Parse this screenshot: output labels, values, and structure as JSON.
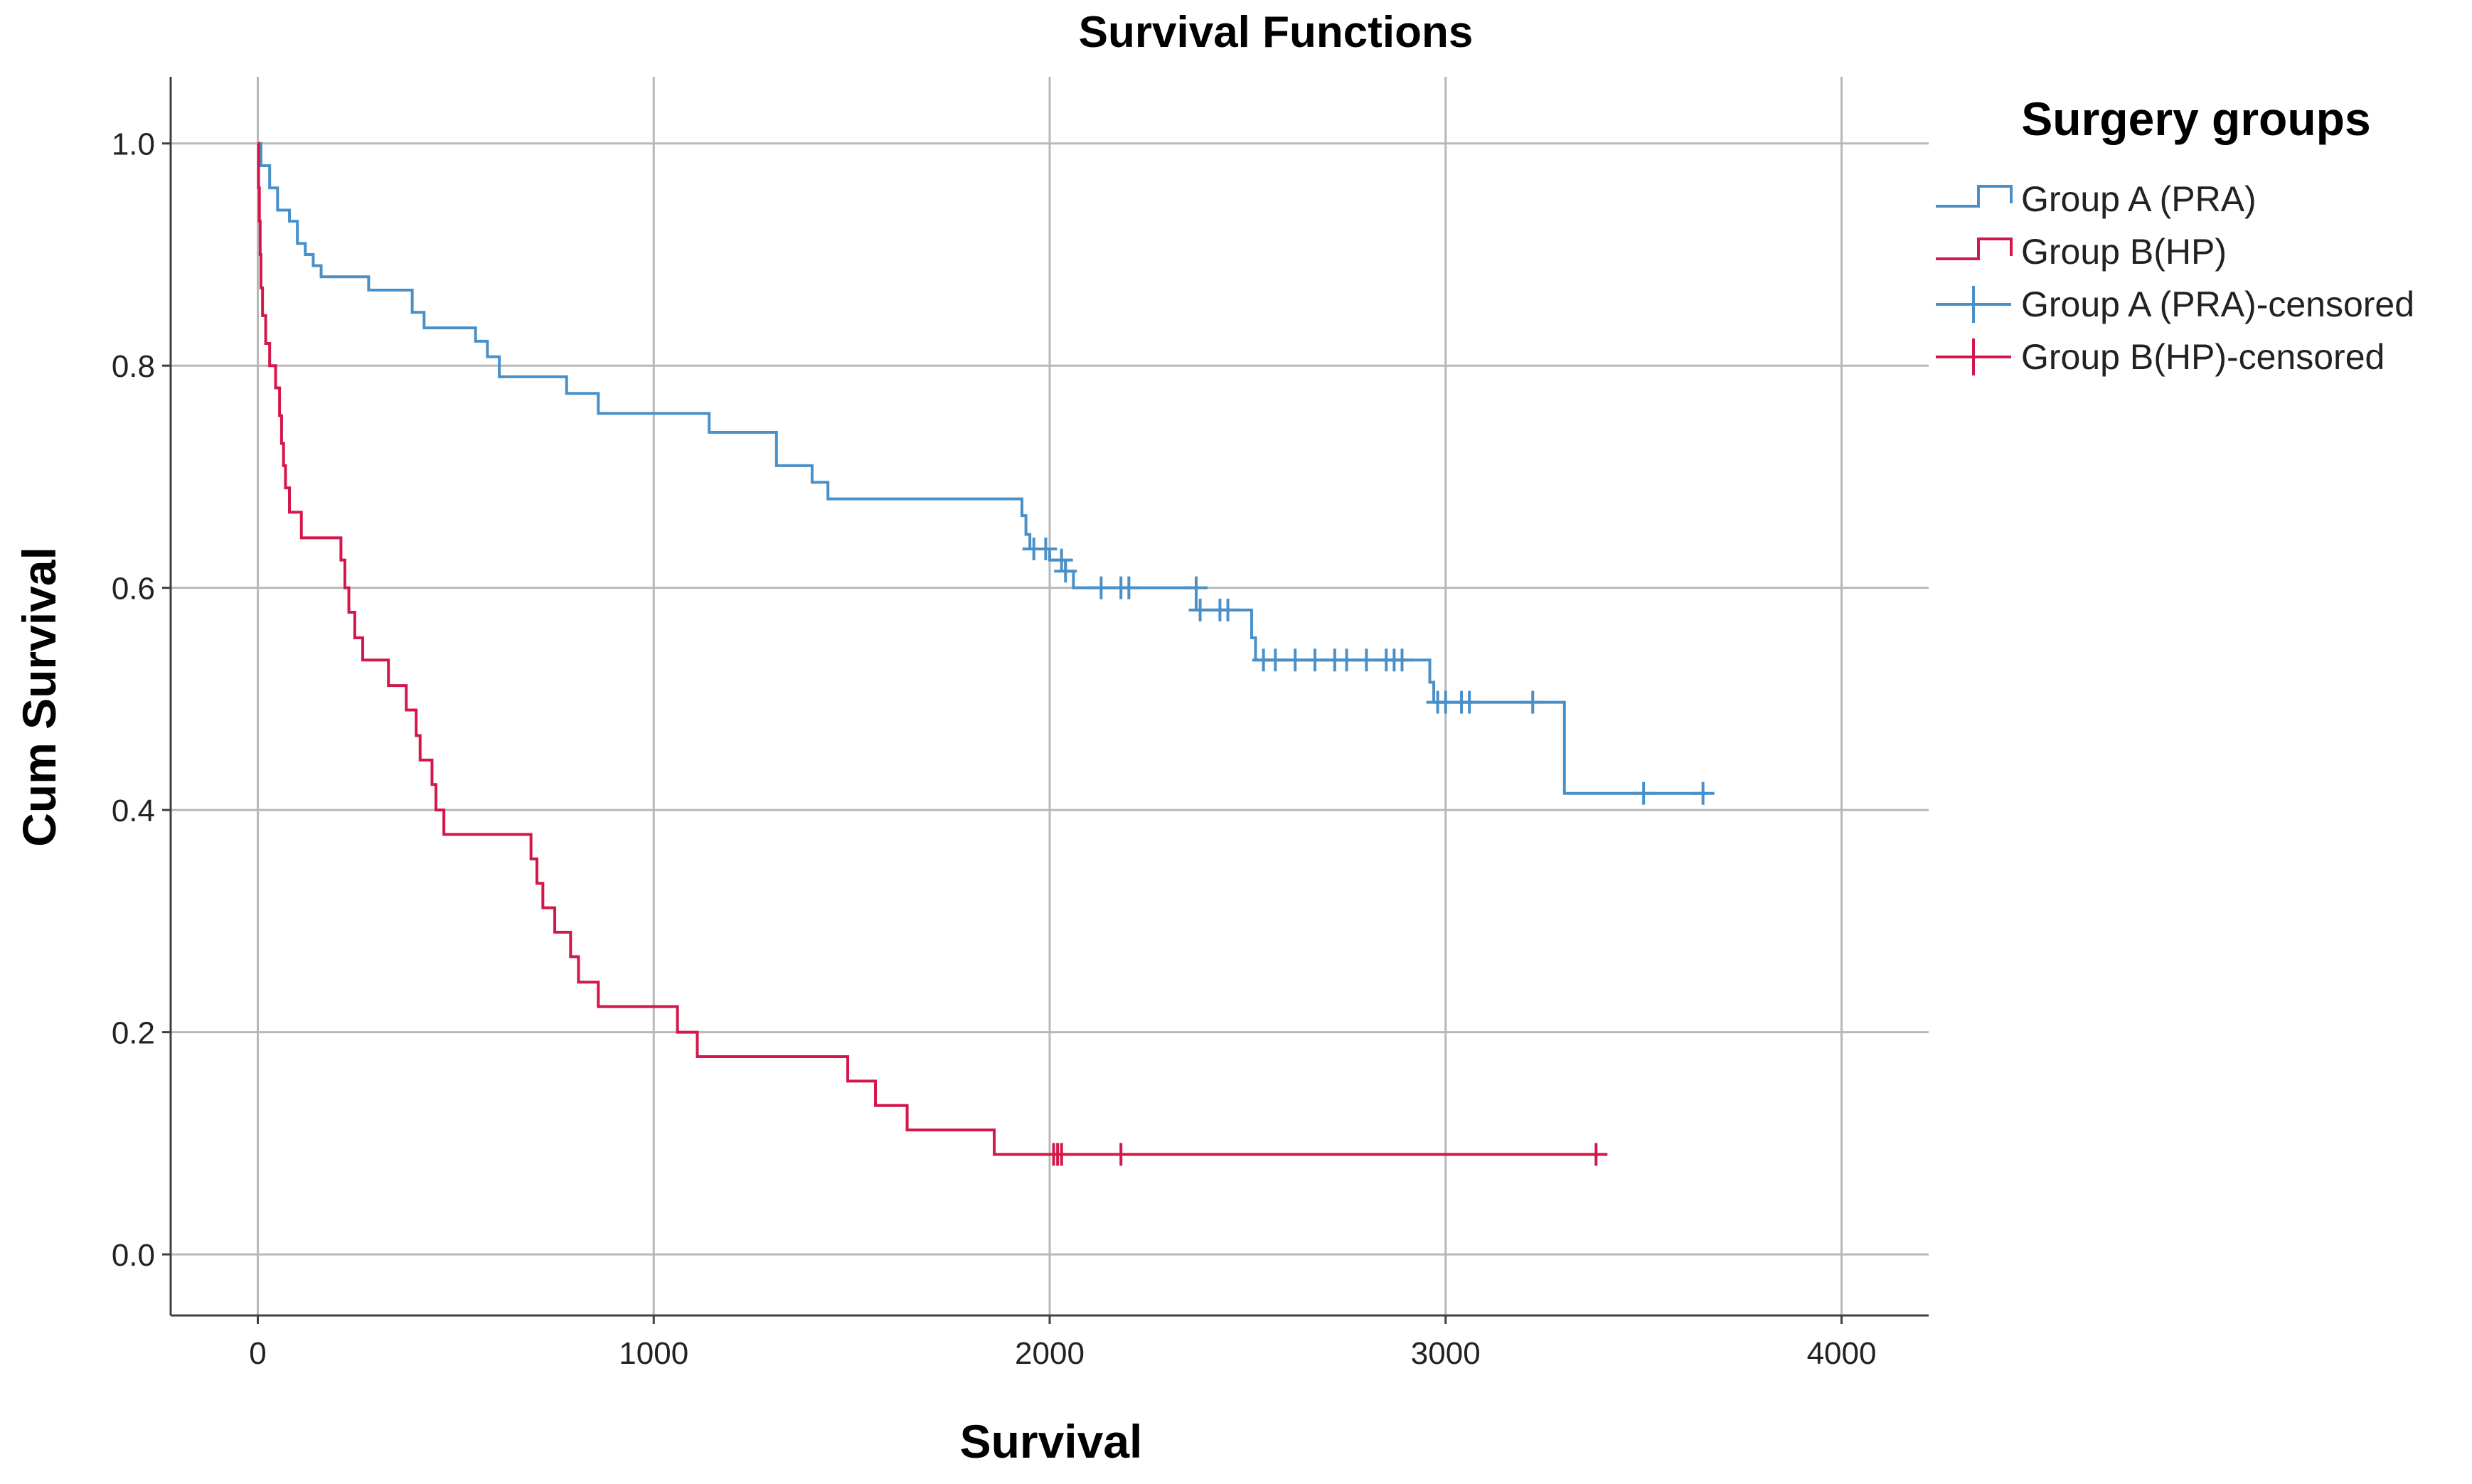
{
  "chart_data": {
    "type": "line",
    "title": "Survival Functions",
    "xlabel": "Survival",
    "ylabel": "Cum Survival",
    "xlim": [
      -220,
      4220
    ],
    "ylim": [
      -0.055,
      1.06
    ],
    "xticks": [
      0,
      1000,
      2000,
      3000,
      4000
    ],
    "yticks": [
      0.0,
      0.2,
      0.4,
      0.6,
      0.8,
      1.0
    ],
    "xtick_labels": [
      "0",
      "1000",
      "2000",
      "3000",
      "4000"
    ],
    "ytick_labels": [
      "0.0",
      "0.2",
      "0.4",
      "0.6",
      "0.8",
      "1.0"
    ],
    "grid": true,
    "legend": {
      "title": "Surgery groups",
      "position": "right",
      "entries": [
        {
          "label": "Group A (PRA)",
          "series": "A",
          "kind": "step"
        },
        {
          "label": "Group B(HP)",
          "series": "B",
          "kind": "step"
        },
        {
          "label": "Group A (PRA)-censored",
          "series": "A",
          "kind": "censor"
        },
        {
          "label": "Group B(HP)-censored",
          "series": "B",
          "kind": "censor"
        }
      ]
    },
    "series": [
      {
        "name": "Group A (PRA)",
        "color": "#4a90c8",
        "steps": [
          [
            0,
            1.0
          ],
          [
            8,
            0.98
          ],
          [
            30,
            0.96
          ],
          [
            50,
            0.94
          ],
          [
            80,
            0.93
          ],
          [
            100,
            0.91
          ],
          [
            120,
            0.9
          ],
          [
            140,
            0.89
          ],
          [
            160,
            0.88
          ],
          [
            280,
            0.868
          ],
          [
            390,
            0.848
          ],
          [
            420,
            0.834
          ],
          [
            550,
            0.822
          ],
          [
            580,
            0.808
          ],
          [
            610,
            0.79
          ],
          [
            780,
            0.775
          ],
          [
            860,
            0.757
          ],
          [
            1140,
            0.74
          ],
          [
            1310,
            0.71
          ],
          [
            1400,
            0.695
          ],
          [
            1440,
            0.68
          ],
          [
            1930,
            0.665
          ],
          [
            1940,
            0.648
          ],
          [
            1950,
            0.635
          ],
          [
            2000,
            0.625
          ],
          [
            2040,
            0.615
          ],
          [
            2060,
            0.6
          ],
          [
            2370,
            0.58
          ],
          [
            2510,
            0.555
          ],
          [
            2520,
            0.535
          ],
          [
            2960,
            0.515
          ],
          [
            2970,
            0.497
          ],
          [
            3300,
            0.415
          ],
          [
            3660,
            0.415
          ]
        ],
        "censored": [
          [
            1960,
            0.635
          ],
          [
            1990,
            0.635
          ],
          [
            2030,
            0.625
          ],
          [
            2040,
            0.615
          ],
          [
            2130,
            0.6
          ],
          [
            2180,
            0.6
          ],
          [
            2200,
            0.6
          ],
          [
            2370,
            0.6
          ],
          [
            2380,
            0.58
          ],
          [
            2430,
            0.58
          ],
          [
            2450,
            0.58
          ],
          [
            2540,
            0.535
          ],
          [
            2570,
            0.535
          ],
          [
            2620,
            0.535
          ],
          [
            2670,
            0.535
          ],
          [
            2720,
            0.535
          ],
          [
            2750,
            0.535
          ],
          [
            2800,
            0.535
          ],
          [
            2850,
            0.535
          ],
          [
            2870,
            0.535
          ],
          [
            2890,
            0.535
          ],
          [
            2980,
            0.497
          ],
          [
            3000,
            0.497
          ],
          [
            3040,
            0.497
          ],
          [
            3060,
            0.497
          ],
          [
            3220,
            0.497
          ],
          [
            3500,
            0.415
          ],
          [
            3650,
            0.415
          ]
        ]
      },
      {
        "name": "Group B(HP)",
        "color": "#d4174a",
        "steps": [
          [
            0,
            1.0
          ],
          [
            2,
            0.96
          ],
          [
            4,
            0.93
          ],
          [
            6,
            0.9
          ],
          [
            8,
            0.87
          ],
          [
            12,
            0.845
          ],
          [
            20,
            0.82
          ],
          [
            30,
            0.8
          ],
          [
            45,
            0.78
          ],
          [
            55,
            0.755
          ],
          [
            60,
            0.73
          ],
          [
            65,
            0.71
          ],
          [
            70,
            0.69
          ],
          [
            80,
            0.668
          ],
          [
            110,
            0.645
          ],
          [
            210,
            0.625
          ],
          [
            220,
            0.6
          ],
          [
            230,
            0.578
          ],
          [
            245,
            0.555
          ],
          [
            265,
            0.535
          ],
          [
            330,
            0.512
          ],
          [
            375,
            0.49
          ],
          [
            400,
            0.467
          ],
          [
            410,
            0.445
          ],
          [
            440,
            0.423
          ],
          [
            450,
            0.4
          ],
          [
            470,
            0.378
          ],
          [
            690,
            0.356
          ],
          [
            705,
            0.334
          ],
          [
            720,
            0.312
          ],
          [
            750,
            0.29
          ],
          [
            790,
            0.268
          ],
          [
            810,
            0.245
          ],
          [
            860,
            0.223
          ],
          [
            1060,
            0.2
          ],
          [
            1110,
            0.178
          ],
          [
            1490,
            0.156
          ],
          [
            1560,
            0.134
          ],
          [
            1640,
            0.112
          ],
          [
            1860,
            0.09
          ],
          [
            3380,
            0.09
          ]
        ],
        "censored": [
          [
            2010,
            0.09
          ],
          [
            2020,
            0.09
          ],
          [
            2030,
            0.09
          ],
          [
            2180,
            0.09
          ],
          [
            3380,
            0.09
          ]
        ]
      }
    ]
  }
}
